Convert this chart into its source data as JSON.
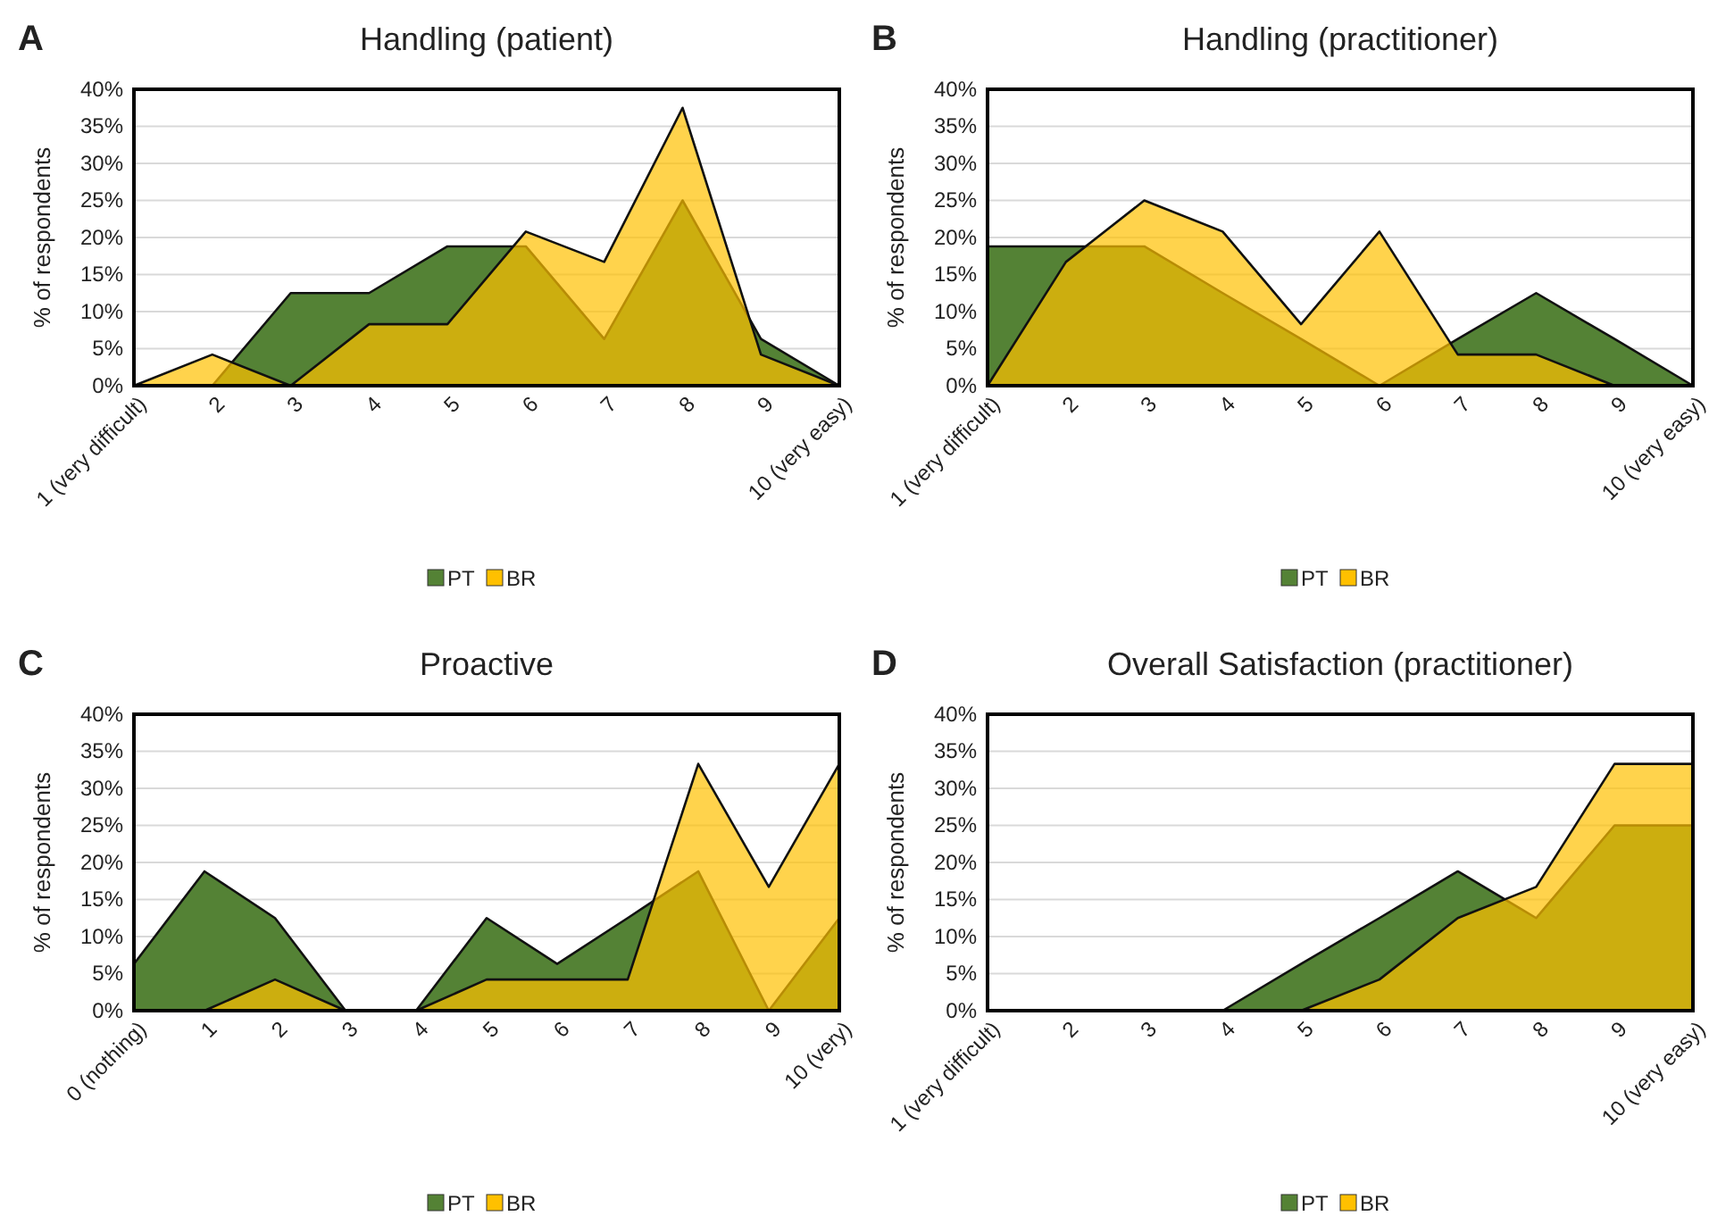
{
  "chart_data": [
    {
      "type": "area",
      "title": "Handling (patient)",
      "ylabel": "% of respondents",
      "annotations": [
        "A"
      ],
      "categories": [
        "1 (very difficult)",
        "2",
        "3",
        "4",
        "5",
        "6",
        "7",
        "8",
        "9",
        "10 (very easy)"
      ],
      "series": [
        {
          "name": "PT",
          "color": "#548235",
          "values": [
            0,
            0,
            12.5,
            12.5,
            18.8,
            18.8,
            6.3,
            25,
            6.3,
            0
          ]
        },
        {
          "name": "BR",
          "color": "#ffc000",
          "values": [
            0,
            4.2,
            0,
            8.3,
            8.3,
            20.8,
            16.7,
            37.5,
            4.2,
            0
          ]
        }
      ],
      "ylim": [
        0,
        40
      ],
      "yticks": [
        {
          "value": 0,
          "label": "0%"
        },
        {
          "value": 5,
          "label": "5%"
        },
        {
          "value": 10,
          "label": "10%"
        },
        {
          "value": 15,
          "label": "15%"
        },
        {
          "value": 20,
          "label": "20%"
        },
        {
          "value": 25,
          "label": "25%"
        },
        {
          "value": 30,
          "label": "30%"
        },
        {
          "value": 35,
          "label": "35%"
        },
        {
          "value": 40,
          "label": "40%"
        }
      ],
      "grid": "y",
      "legend": "bottom"
    },
    {
      "type": "area",
      "title": "Handling (practitioner)",
      "ylabel": "% of respondents",
      "annotations": [
        "B"
      ],
      "categories": [
        "1 (very difficult)",
        "2",
        "3",
        "4",
        "5",
        "6",
        "7",
        "8",
        "9",
        "10 (very easy)"
      ],
      "series": [
        {
          "name": "PT",
          "color": "#548235",
          "values": [
            18.8,
            18.8,
            18.8,
            12.5,
            6.3,
            0,
            6.3,
            12.5,
            6.3,
            0
          ]
        },
        {
          "name": "BR",
          "color": "#ffc000",
          "values": [
            0,
            16.7,
            25,
            20.8,
            8.3,
            20.8,
            4.2,
            4.2,
            0,
            0
          ]
        }
      ],
      "ylim": [
        0,
        40
      ],
      "yticks": [
        {
          "value": 0,
          "label": "0%"
        },
        {
          "value": 5,
          "label": "5%"
        },
        {
          "value": 10,
          "label": "10%"
        },
        {
          "value": 15,
          "label": "15%"
        },
        {
          "value": 20,
          "label": "20%"
        },
        {
          "value": 25,
          "label": "25%"
        },
        {
          "value": 30,
          "label": "30%"
        },
        {
          "value": 35,
          "label": "35%"
        },
        {
          "value": 40,
          "label": "40%"
        }
      ],
      "grid": "y",
      "legend": "bottom"
    },
    {
      "type": "area",
      "title": "Proactive",
      "ylabel": "% of respondents",
      "annotations": [
        "C"
      ],
      "categories": [
        "0 (nothing)",
        "1",
        "2",
        "3",
        "4",
        "5",
        "6",
        "7",
        "8",
        "9",
        "10 (very)"
      ],
      "series": [
        {
          "name": "PT",
          "color": "#548235",
          "values": [
            6.3,
            18.8,
            12.5,
            0,
            0,
            12.5,
            6.3,
            12.5,
            18.8,
            0,
            12.5
          ]
        },
        {
          "name": "BR",
          "color": "#ffc000",
          "values": [
            0,
            0,
            4.2,
            0,
            0,
            4.2,
            4.2,
            4.2,
            33.3,
            16.7,
            33.3
          ]
        }
      ],
      "ylim": [
        0,
        40
      ],
      "yticks": [
        {
          "value": 0,
          "label": "0%"
        },
        {
          "value": 5,
          "label": "5%"
        },
        {
          "value": 10,
          "label": "10%"
        },
        {
          "value": 15,
          "label": "15%"
        },
        {
          "value": 20,
          "label": "20%"
        },
        {
          "value": 25,
          "label": "25%"
        },
        {
          "value": 30,
          "label": "30%"
        },
        {
          "value": 35,
          "label": "35%"
        },
        {
          "value": 40,
          "label": "40%"
        }
      ],
      "grid": "y",
      "legend": "bottom"
    },
    {
      "type": "area",
      "title": "Overall Satisfaction (practitioner)",
      "ylabel": "% of respondents",
      "annotations": [
        "D"
      ],
      "categories": [
        "1 (very difficult)",
        "2",
        "3",
        "4",
        "5",
        "6",
        "7",
        "8",
        "9",
        "10 (very easy)"
      ],
      "series": [
        {
          "name": "PT",
          "color": "#548235",
          "values": [
            0,
            0,
            0,
            0,
            6.3,
            12.5,
            18.8,
            12.5,
            25,
            25
          ]
        },
        {
          "name": "BR",
          "color": "#ffc000",
          "values": [
            0,
            0,
            0,
            0,
            0,
            4.2,
            12.5,
            16.7,
            33.3,
            33.3
          ]
        }
      ],
      "ylim": [
        0,
        40
      ],
      "yticks": [
        {
          "value": 0,
          "label": "0%"
        },
        {
          "value": 5,
          "label": "5%"
        },
        {
          "value": 10,
          "label": "10%"
        },
        {
          "value": 15,
          "label": "15%"
        },
        {
          "value": 20,
          "label": "20%"
        },
        {
          "value": 25,
          "label": "25%"
        },
        {
          "value": 30,
          "label": "30%"
        },
        {
          "value": 35,
          "label": "35%"
        },
        {
          "value": 40,
          "label": "40%"
        }
      ],
      "grid": "y",
      "legend": "bottom"
    }
  ]
}
